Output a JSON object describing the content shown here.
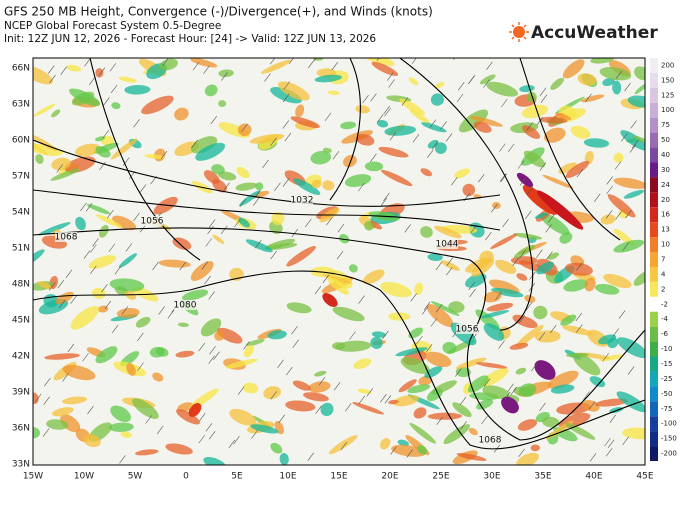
{
  "header": {
    "title": "GFS 250 MB Height, Convergence (-)/Divergence(+), and Winds (knots)",
    "subtitle": "NCEP Global Forecast System 0.5-Degree",
    "init": "Init: 12Z JUN 12, 2026 - Forecast Hour: [24] -> Valid: 12Z JUN 13, 2026"
  },
  "logo": "AccuWeather",
  "map": {
    "lat_labels": [
      "66N",
      "63N",
      "60N",
      "57N",
      "54N",
      "51N",
      "48N",
      "45N",
      "42N",
      "39N",
      "36N",
      "33N"
    ],
    "lon_labels": [
      "15W",
      "10W",
      "5W",
      "0",
      "5E",
      "10E",
      "15E",
      "20E",
      "25E",
      "30E",
      "35E",
      "40E",
      "45E"
    ],
    "contour_labels": [
      "1068",
      "1056",
      "1080",
      "1032",
      "1044",
      "1056",
      "1068"
    ]
  },
  "colorbar": {
    "labels": [
      "200",
      "150",
      "125",
      "100",
      "75",
      "50",
      "40",
      "30",
      "24",
      "20",
      "16",
      "13",
      "10",
      "7",
      "4",
      "2",
      "-2",
      "-4",
      "-6",
      "-10",
      "-15",
      "-25",
      "-50",
      "-75",
      "-100",
      "-150",
      "-200"
    ]
  }
}
